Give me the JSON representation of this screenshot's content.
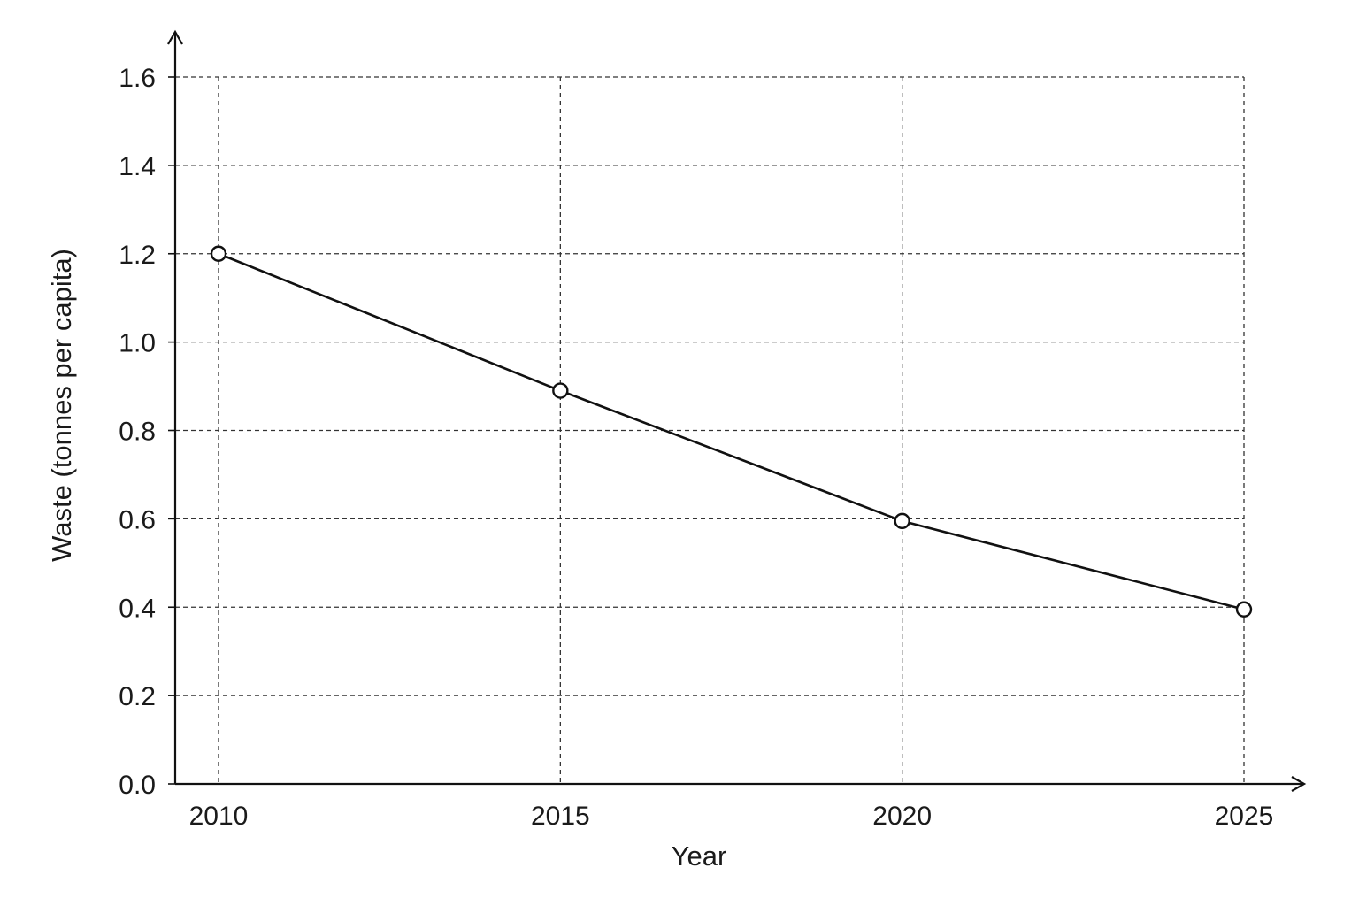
{
  "chart_data": {
    "type": "line",
    "title": "",
    "xlabel": "Year",
    "ylabel": "Waste (tonnes per capita)",
    "x": [
      2010,
      2015,
      2020,
      2025
    ],
    "x_tick_labels": [
      "2010",
      "2015",
      "2020",
      "2025"
    ],
    "y_tick_labels": [
      "0.0",
      "0.2",
      "0.4",
      "0.6",
      "0.8",
      "1.0",
      "1.2",
      "1.4",
      "1.6"
    ],
    "series": [
      {
        "values": [
          1.2,
          0.89,
          0.595,
          0.395
        ],
        "color": "#111111",
        "marker": "open-circle"
      }
    ],
    "ylim": [
      0,
      1.6
    ],
    "grid": true,
    "grid_style": "dashed",
    "axis_arrows": true
  }
}
